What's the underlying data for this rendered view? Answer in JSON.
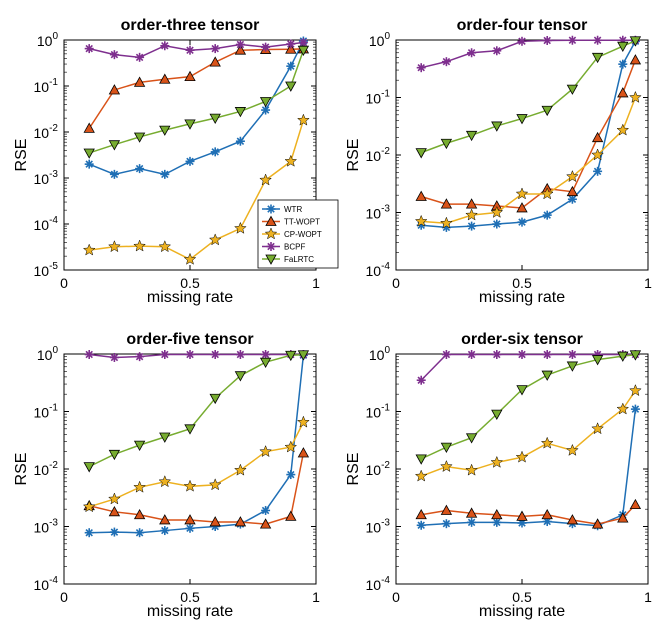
{
  "legend": {
    "entries": [
      "WTR",
      "TT-WOPT",
      "CP-WOPT",
      "BCPF",
      "FaLRTC"
    ],
    "placement": "lower-right inside first panel"
  },
  "series_style": [
    {
      "name": "WTR",
      "color": "#1f6fb5",
      "marker": "asterisk"
    },
    {
      "name": "TT-WOPT",
      "color": "#d95319",
      "marker": "triangle-up"
    },
    {
      "name": "CP-WOPT",
      "color": "#edb120",
      "marker": "star"
    },
    {
      "name": "BCPF",
      "color": "#7e2f8e",
      "marker": "asterisk"
    },
    {
      "name": "FaLRTC",
      "color": "#77ac30",
      "marker": "triangle-down"
    }
  ],
  "chart_data": [
    {
      "type": "line",
      "title": "order-three tensor",
      "xlabel": "missing rate",
      "ylabel": "RSE",
      "yscale": "log",
      "xlim": [
        0,
        1
      ],
      "ylim": [
        1e-05,
        1
      ],
      "xticks": [
        "0",
        "0.5",
        "1"
      ],
      "yticks": [
        "10^-5",
        "10^-4",
        "10^-3",
        "10^-2",
        "10^-1",
        "10^0"
      ],
      "x": [
        0.1,
        0.2,
        0.3,
        0.4,
        0.5,
        0.6,
        0.7,
        0.8,
        0.9,
        0.95
      ],
      "series": [
        {
          "name": "WTR",
          "values": [
            0.002,
            0.0012,
            0.0016,
            0.0012,
            0.0023,
            0.0037,
            0.0063,
            0.03,
            0.27,
            0.95
          ]
        },
        {
          "name": "TT-WOPT",
          "values": [
            0.012,
            0.082,
            0.12,
            0.14,
            0.16,
            0.33,
            0.6,
            0.62,
            0.63,
            0.64
          ]
        },
        {
          "name": "CP-WOPT",
          "values": [
            2.7e-05,
            3.2e-05,
            3.3e-05,
            3.2e-05,
            1.7e-05,
            4.5e-05,
            8e-05,
            0.0009,
            0.0023,
            0.018
          ]
        },
        {
          "name": "BCPF",
          "values": [
            0.65,
            0.48,
            0.42,
            0.75,
            0.6,
            0.65,
            0.8,
            0.7,
            0.82,
            0.88
          ]
        },
        {
          "name": "FaLRTC",
          "values": [
            0.0035,
            0.0053,
            0.0078,
            0.011,
            0.015,
            0.02,
            0.028,
            0.046,
            0.1,
            0.6
          ]
        }
      ]
    },
    {
      "type": "line",
      "title": "order-four tensor",
      "xlabel": "missing rate",
      "ylabel": "RSE",
      "yscale": "log",
      "xlim": [
        0,
        1
      ],
      "ylim": [
        0.0001,
        1
      ],
      "xticks": [
        "0",
        "0.5",
        "1"
      ],
      "yticks": [
        "10^-4",
        "10^-3",
        "10^-2",
        "10^-1",
        "10^0"
      ],
      "x": [
        0.1,
        0.2,
        0.3,
        0.4,
        0.5,
        0.6,
        0.7,
        0.8,
        0.9,
        0.95
      ],
      "series": [
        {
          "name": "WTR",
          "values": [
            0.0006,
            0.00055,
            0.00058,
            0.00063,
            0.00068,
            0.0009,
            0.0017,
            0.0052,
            0.38,
            0.95
          ]
        },
        {
          "name": "TT-WOPT",
          "values": [
            0.0019,
            0.0014,
            0.0014,
            0.0013,
            0.0012,
            0.0026,
            0.0023,
            0.02,
            0.12,
            0.45
          ]
        },
        {
          "name": "CP-WOPT",
          "values": [
            0.0007,
            0.00065,
            0.0009,
            0.001,
            0.0021,
            0.0021,
            0.0042,
            0.01,
            0.027,
            0.1
          ]
        },
        {
          "name": "BCPF",
          "values": [
            0.33,
            0.42,
            0.6,
            0.65,
            0.95,
            0.98,
            0.99,
            0.99,
            0.99,
            0.99
          ]
        },
        {
          "name": "FaLRTC",
          "values": [
            0.011,
            0.016,
            0.022,
            0.032,
            0.043,
            0.06,
            0.14,
            0.5,
            0.78,
            0.97
          ]
        }
      ]
    },
    {
      "type": "line",
      "title": "order-five tensor",
      "xlabel": "missing rate",
      "ylabel": "RSE",
      "yscale": "log",
      "xlim": [
        0,
        1
      ],
      "ylim": [
        0.0001,
        1
      ],
      "xticks": [
        "0",
        "0.5",
        "1"
      ],
      "yticks": [
        "10^-4",
        "10^-3",
        "10^-2",
        "10^-1",
        "10^0"
      ],
      "x": [
        0.1,
        0.2,
        0.3,
        0.4,
        0.5,
        0.6,
        0.7,
        0.8,
        0.9,
        0.95
      ],
      "series": [
        {
          "name": "WTR",
          "values": [
            0.00078,
            0.0008,
            0.00078,
            0.00085,
            0.00093,
            0.001,
            0.0011,
            0.0019,
            0.008,
            0.95
          ]
        },
        {
          "name": "TT-WOPT",
          "values": [
            0.0023,
            0.0018,
            0.0016,
            0.0013,
            0.0013,
            0.0012,
            0.0012,
            0.0011,
            0.0015,
            0.019
          ]
        },
        {
          "name": "CP-WOPT",
          "values": [
            0.0022,
            0.003,
            0.0048,
            0.006,
            0.005,
            0.0053,
            0.0095,
            0.02,
            0.024,
            0.065
          ]
        },
        {
          "name": "BCPF",
          "values": [
            0.98,
            0.87,
            0.9,
            0.98,
            0.98,
            0.98,
            0.98,
            0.98,
            0.98,
            0.98
          ]
        },
        {
          "name": "FaLRTC",
          "values": [
            0.011,
            0.018,
            0.026,
            0.036,
            0.05,
            0.17,
            0.42,
            0.72,
            0.95,
            0.97
          ]
        }
      ]
    },
    {
      "type": "line",
      "title": "order-six tensor",
      "xlabel": "missing rate",
      "ylabel": "RSE",
      "yscale": "log",
      "xlim": [
        0,
        1
      ],
      "ylim": [
        0.0001,
        1
      ],
      "xticks": [
        "0",
        "0.5",
        "1"
      ],
      "yticks": [
        "10^-4",
        "10^-3",
        "10^-2",
        "10^-1",
        "10^0"
      ],
      "x": [
        0.1,
        0.2,
        0.3,
        0.4,
        0.5,
        0.6,
        0.7,
        0.8,
        0.9,
        0.95
      ],
      "series": [
        {
          "name": "WTR",
          "values": [
            0.00105,
            0.00112,
            0.00118,
            0.00118,
            0.00115,
            0.00122,
            0.00112,
            0.00103,
            0.0016,
            0.11
          ]
        },
        {
          "name": "TT-WOPT",
          "values": [
            0.0016,
            0.0019,
            0.0017,
            0.0016,
            0.0015,
            0.0016,
            0.0013,
            0.0011,
            0.0014,
            0.0024
          ]
        },
        {
          "name": "CP-WOPT",
          "values": [
            0.0075,
            0.011,
            0.0095,
            0.013,
            0.016,
            0.028,
            0.021,
            0.05,
            0.11,
            0.23
          ]
        },
        {
          "name": "BCPF",
          "values": [
            0.35,
            0.98,
            0.98,
            0.98,
            0.98,
            0.98,
            0.98,
            0.98,
            0.98,
            0.98
          ]
        },
        {
          "name": "FaLRTC",
          "values": [
            0.015,
            0.024,
            0.035,
            0.09,
            0.24,
            0.43,
            0.62,
            0.8,
            0.92,
            0.97
          ]
        }
      ]
    }
  ]
}
